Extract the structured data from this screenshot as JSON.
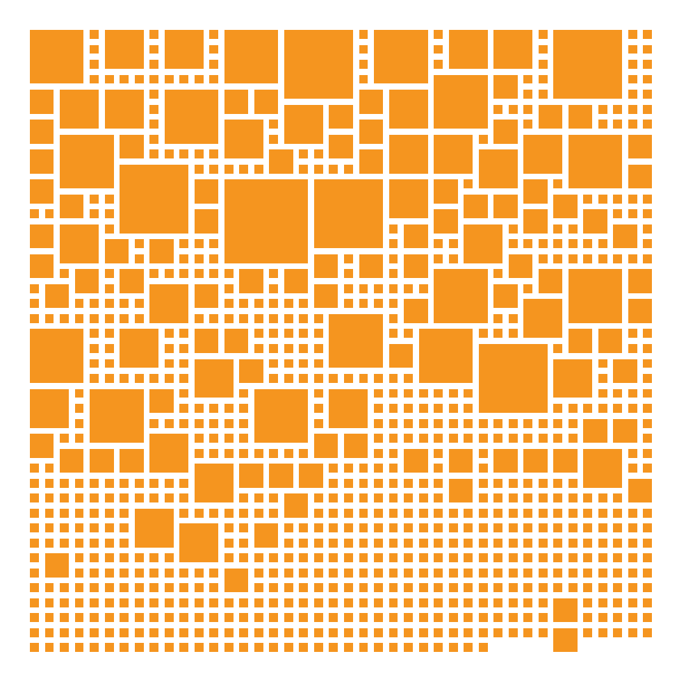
{
  "colors": {
    "background": "#ffffff",
    "tile": "#f5951f"
  },
  "mosaic": {
    "description_visible_text": "",
    "grid_columns": 42,
    "dot_rows_empty_tail": {
      "last_row_filled_columns": 31
    },
    "blocks": [
      [
        0,
        0,
        4
      ],
      [
        5,
        0,
        3
      ],
      [
        9,
        0,
        3
      ],
      [
        13,
        0,
        4
      ],
      [
        17,
        0,
        5
      ],
      [
        23,
        0,
        4
      ],
      [
        28,
        0,
        3
      ],
      [
        31,
        0,
        3
      ],
      [
        35,
        0,
        5
      ],
      [
        39,
        1,
        3
      ],
      [
        0,
        4,
        2
      ],
      [
        2,
        4,
        3
      ],
      [
        5,
        4,
        3
      ],
      [
        9,
        4,
        4
      ],
      [
        13,
        4,
        2
      ],
      [
        15,
        4,
        2
      ],
      [
        17,
        5,
        3
      ],
      [
        20,
        5,
        2
      ],
      [
        22,
        4,
        2
      ],
      [
        24,
        4,
        3
      ],
      [
        27,
        3,
        4
      ],
      [
        31,
        3,
        2
      ],
      [
        34,
        5,
        2
      ],
      [
        36,
        5,
        2
      ],
      [
        39,
        4,
        3
      ],
      [
        0,
        6,
        2
      ],
      [
        13,
        6,
        3
      ],
      [
        22,
        6,
        2
      ],
      [
        31,
        6,
        2
      ],
      [
        2,
        7,
        4
      ],
      [
        6,
        7,
        2
      ],
      [
        8,
        7,
        2
      ],
      [
        10,
        7,
        2
      ],
      [
        16,
        8,
        2
      ],
      [
        20,
        7,
        2
      ],
      [
        24,
        7,
        3
      ],
      [
        27,
        7,
        3
      ],
      [
        30,
        8,
        3
      ],
      [
        33,
        7,
        3
      ],
      [
        36,
        7,
        4
      ],
      [
        40,
        7,
        2
      ],
      [
        0,
        8,
        2
      ],
      [
        22,
        8,
        2
      ],
      [
        6,
        9,
        5
      ],
      [
        13,
        10,
        6
      ],
      [
        19,
        10,
        5
      ],
      [
        40,
        9,
        2
      ],
      [
        0,
        10,
        2
      ],
      [
        11,
        10,
        2
      ],
      [
        24,
        10,
        3
      ],
      [
        27,
        10,
        2
      ],
      [
        33,
        10,
        2
      ],
      [
        36,
        10,
        2
      ],
      [
        2,
        11,
        2
      ],
      [
        29,
        11,
        2
      ],
      [
        31,
        11,
        2
      ],
      [
        35,
        11,
        2
      ],
      [
        11,
        12,
        2
      ],
      [
        27,
        12,
        2
      ],
      [
        33,
        12,
        2
      ],
      [
        37,
        12,
        2
      ],
      [
        39,
        13,
        2
      ],
      [
        0,
        13,
        2
      ],
      [
        2,
        13,
        3
      ],
      [
        5,
        14,
        2
      ],
      [
        8,
        14,
        2
      ],
      [
        25,
        13,
        2
      ],
      [
        29,
        13,
        3
      ],
      [
        34,
        13,
        2
      ],
      [
        36,
        13,
        2
      ],
      [
        40,
        13,
        2
      ],
      [
        0,
        15,
        2
      ],
      [
        19,
        15,
        2
      ],
      [
        22,
        15,
        2
      ],
      [
        25,
        15,
        2
      ],
      [
        32,
        15,
        2
      ],
      [
        3,
        16,
        2
      ],
      [
        6,
        16,
        2
      ],
      [
        14,
        16,
        2
      ],
      [
        17,
        16,
        2
      ],
      [
        27,
        16,
        4
      ],
      [
        34,
        16,
        2
      ],
      [
        36,
        16,
        4
      ],
      [
        40,
        16,
        2
      ],
      [
        1,
        17,
        2
      ],
      [
        4,
        17,
        3
      ],
      [
        8,
        17,
        3
      ],
      [
        11,
        17,
        2
      ],
      [
        15,
        17,
        2
      ],
      [
        19,
        17,
        2
      ],
      [
        31,
        17,
        2
      ],
      [
        40,
        18,
        2
      ],
      [
        33,
        18,
        3
      ],
      [
        25,
        18,
        2
      ],
      [
        20,
        19,
        4
      ],
      [
        24,
        19,
        4
      ],
      [
        0,
        20,
        4
      ],
      [
        6,
        20,
        3
      ],
      [
        8,
        20,
        3
      ],
      [
        11,
        20,
        2
      ],
      [
        13,
        20,
        2
      ],
      [
        14,
        20,
        2
      ],
      [
        17,
        19,
        4
      ],
      [
        26,
        20,
        4
      ],
      [
        30,
        21,
        5
      ],
      [
        36,
        20,
        2
      ],
      [
        38,
        20,
        2
      ],
      [
        5,
        21,
        2
      ],
      [
        24,
        21,
        2
      ],
      [
        39,
        21,
        2
      ],
      [
        11,
        22,
        3
      ],
      [
        14,
        22,
        2
      ],
      [
        35,
        22,
        3
      ],
      [
        39,
        22,
        2
      ],
      [
        40,
        23,
        2
      ],
      [
        0,
        24,
        3
      ],
      [
        4,
        24,
        4
      ],
      [
        8,
        24,
        2
      ],
      [
        15,
        24,
        4
      ],
      [
        20,
        24,
        3
      ],
      [
        37,
        26,
        2
      ],
      [
        39,
        26,
        2
      ],
      [
        0,
        27,
        2
      ],
      [
        8,
        27,
        3
      ],
      [
        19,
        27,
        2
      ],
      [
        21,
        27,
        2
      ],
      [
        2,
        28,
        2
      ],
      [
        4,
        28,
        2
      ],
      [
        6,
        28,
        2
      ],
      [
        25,
        28,
        2
      ],
      [
        28,
        28,
        2
      ],
      [
        31,
        28,
        2
      ],
      [
        33,
        28,
        2
      ],
      [
        35,
        28,
        2
      ],
      [
        37,
        28,
        3
      ],
      [
        11,
        29,
        3
      ],
      [
        14,
        29,
        2
      ],
      [
        16,
        29,
        2
      ],
      [
        18,
        29,
        2
      ],
      [
        40,
        30,
        2
      ],
      [
        28,
        30,
        2
      ],
      [
        17,
        31,
        2
      ],
      [
        7,
        32,
        3
      ],
      [
        10,
        33,
        3
      ],
      [
        15,
        33,
        2
      ],
      [
        1,
        35,
        2
      ],
      [
        13,
        36,
        2
      ],
      [
        35,
        38,
        2
      ],
      [
        35,
        40,
        2
      ]
    ]
  }
}
